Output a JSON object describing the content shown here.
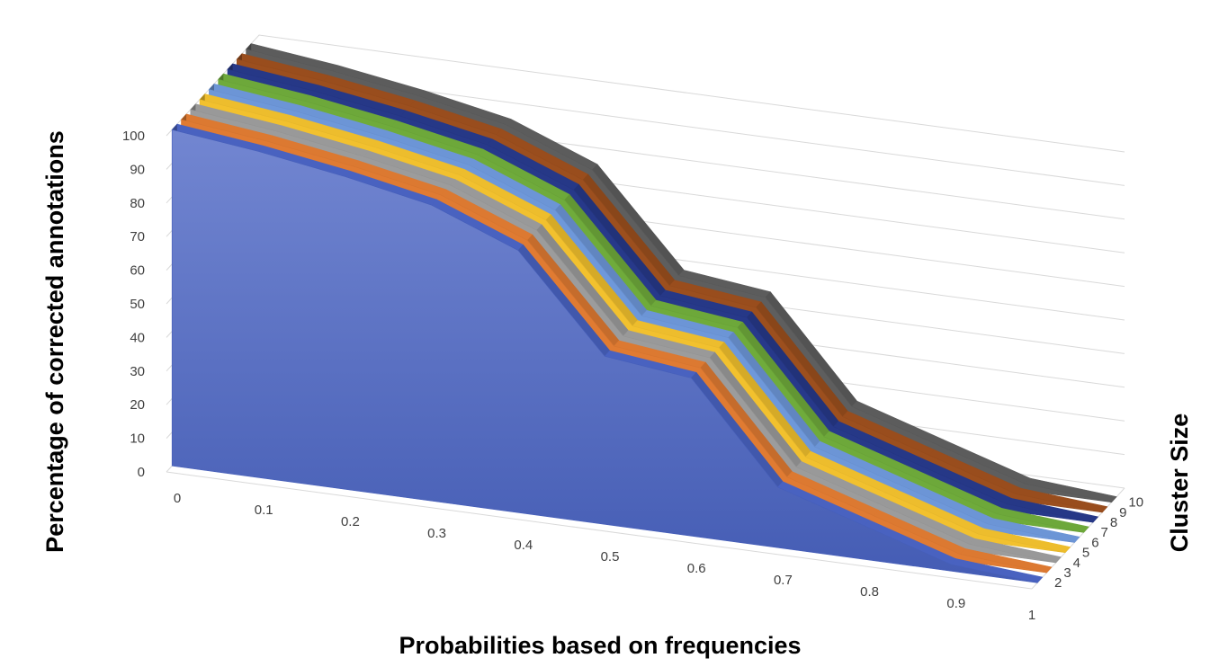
{
  "chart_data": {
    "type": "area",
    "variant": "3d",
    "title": "",
    "xlabel": "Probabilities based on frequencies",
    "ylabel": "Percentage of corrected  annotations",
    "zlabel": "Cluster Size",
    "x": [
      0,
      0.1,
      0.2,
      0.3,
      0.4,
      0.5,
      0.6,
      0.7,
      0.8,
      0.9,
      1
    ],
    "x_tick_labels": [
      "0",
      "0.1",
      "0.2",
      "0.3",
      "0.4",
      "0.5",
      "0.6",
      "0.7",
      "0.8",
      "0.9",
      "1"
    ],
    "ylim": [
      0,
      100
    ],
    "y_ticks": [
      0,
      10,
      20,
      30,
      40,
      50,
      60,
      70,
      80,
      90,
      100
    ],
    "z_tick_labels": [
      "2",
      "3",
      "4",
      "5",
      "6",
      "7",
      "8",
      "9",
      "10"
    ],
    "grid": true,
    "series": [
      {
        "name": "2",
        "color": "#4a64c4",
        "values": [
          100,
          97,
          93,
          88,
          78,
          50,
          47,
          18,
          10,
          2,
          0
        ]
      },
      {
        "name": "3",
        "color": "#e07b32",
        "values": [
          100,
          97,
          93,
          88,
          78,
          50,
          47,
          18,
          10,
          2,
          0
        ]
      },
      {
        "name": "4",
        "color": "#9c9c9c",
        "values": [
          100,
          97,
          93,
          88,
          78,
          50,
          47,
          18,
          10,
          2,
          0
        ]
      },
      {
        "name": "5",
        "color": "#f2c12e",
        "values": [
          100,
          97,
          93,
          88,
          78,
          50,
          47,
          18,
          10,
          2,
          0
        ]
      },
      {
        "name": "6",
        "color": "#6e98da",
        "values": [
          100,
          97,
          93,
          88,
          78,
          50,
          47,
          18,
          10,
          2,
          0
        ]
      },
      {
        "name": "7",
        "color": "#6fab3b",
        "values": [
          100,
          97,
          93,
          88,
          78,
          50,
          47,
          18,
          10,
          2,
          0
        ]
      },
      {
        "name": "8",
        "color": "#27398a",
        "values": [
          100,
          97,
          93,
          88,
          78,
          50,
          47,
          18,
          10,
          2,
          0
        ]
      },
      {
        "name": "9",
        "color": "#9c4f1e",
        "values": [
          100,
          97,
          93,
          88,
          78,
          50,
          47,
          18,
          10,
          2,
          0
        ]
      },
      {
        "name": "10",
        "color": "#5e5e5e",
        "values": [
          100,
          97,
          93,
          88,
          78,
          50,
          47,
          18,
          10,
          2,
          0
        ]
      }
    ]
  }
}
